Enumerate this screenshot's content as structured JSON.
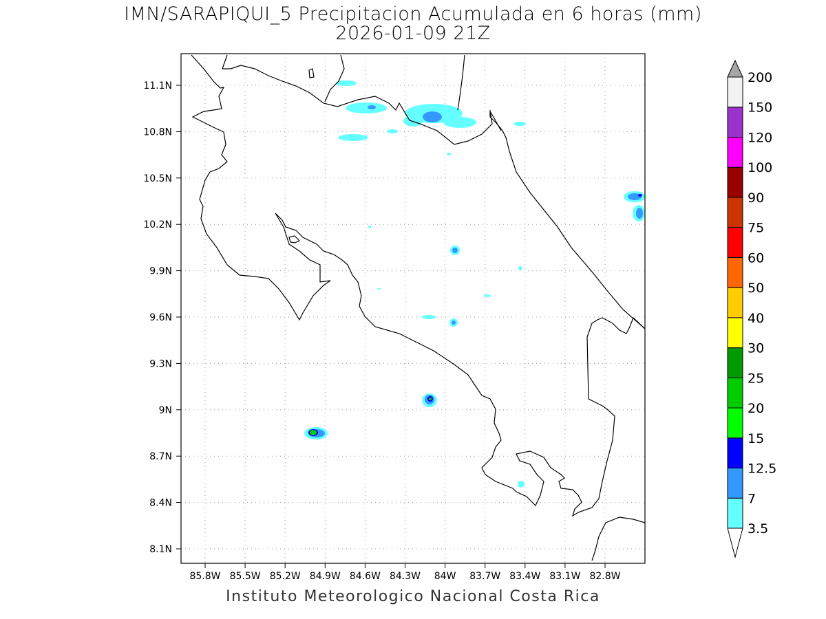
{
  "title": {
    "line1": "IMN/SARAPIQUI_5 Precipitacion Acumulada en 6 horas (mm)",
    "line2": "2026-01-09 21Z"
  },
  "credit": "Instituto Meteorologico Nacional Costa Rica",
  "axes": {
    "lon_ticks": [
      "85.8W",
      "85.5W",
      "85.2W",
      "84.9W",
      "84.6W",
      "84.3W",
      "84W",
      "83.7W",
      "83.4W",
      "83.1W",
      "82.8W"
    ],
    "lat_ticks": [
      "11.1N",
      "10.8N",
      "10.5N",
      "10.2N",
      "9.9N",
      "9.6N",
      "9.3N",
      "9N",
      "8.7N",
      "8.4N",
      "8.1N"
    ]
  },
  "colorbar": {
    "labels": [
      "3.5",
      "7",
      "12.5",
      "15",
      "20",
      "25",
      "30",
      "40",
      "50",
      "60",
      "75",
      "90",
      "100",
      "120",
      "150",
      "200"
    ],
    "colors": [
      "#66ffff",
      "#3399ff",
      "#0000ff",
      "#00ff00",
      "#00cc00",
      "#009900",
      "#ffff00",
      "#ffcc00",
      "#ff6600",
      "#ff0000",
      "#cc3300",
      "#990000",
      "#ff00ff",
      "#9933cc",
      "#f2f2f2"
    ],
    "under_color": "#ffffff",
    "over_color": "#a6a6a6"
  }
}
